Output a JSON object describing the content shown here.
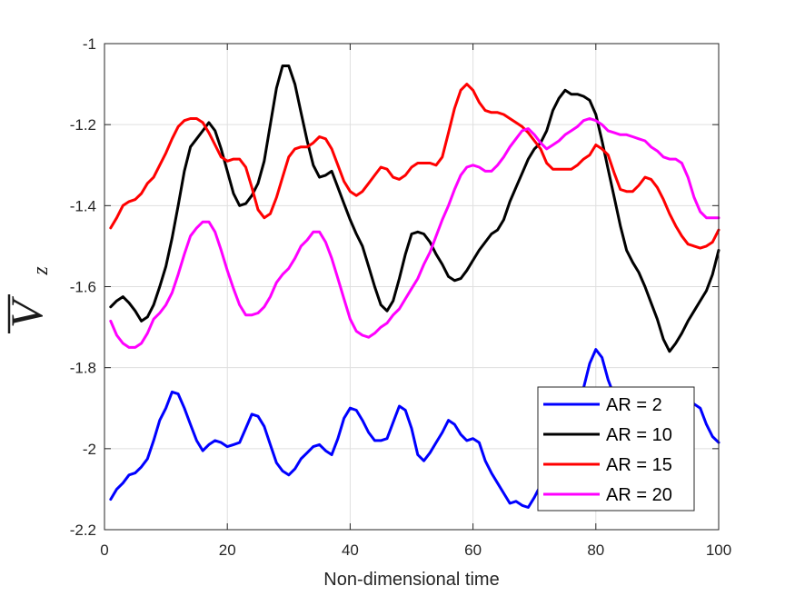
{
  "chart_data": {
    "type": "line",
    "xlabel": "Non-dimensional time",
    "ylabel": {
      "symbol": "V",
      "subscript": "z",
      "overline": true
    },
    "xlim": [
      0,
      100
    ],
    "ylim": [
      -2.2,
      -1.0
    ],
    "xticks": [
      0,
      20,
      40,
      60,
      80,
      100
    ],
    "yticks": [
      -2.2,
      -2.0,
      -1.8,
      -1.6,
      -1.4,
      -1.2,
      -1.0
    ],
    "xtick_labels": [
      "0",
      "20",
      "40",
      "60",
      "80",
      "100"
    ],
    "ytick_labels": [
      "-2.2",
      "-2",
      "-1.8",
      "-1.6",
      "-1.4",
      "-1.2",
      "-1"
    ],
    "grid": true,
    "legend_position": "bottom-right",
    "series": [
      {
        "name": "AR = 2",
        "color": "#0000ff",
        "x": [
          1,
          2,
          3,
          4,
          5,
          6,
          7,
          8,
          9,
          10,
          11,
          12,
          13,
          14,
          15,
          16,
          17,
          18,
          19,
          20,
          21,
          22,
          23,
          24,
          25,
          26,
          27,
          28,
          29,
          30,
          31,
          32,
          33,
          34,
          35,
          36,
          37,
          38,
          39,
          40,
          41,
          42,
          43,
          44,
          45,
          46,
          47,
          48,
          49,
          50,
          51,
          52,
          53,
          54,
          55,
          56,
          57,
          58,
          59,
          60,
          61,
          62,
          63,
          64,
          65,
          66,
          67,
          68,
          69,
          70,
          71,
          72,
          73,
          74,
          75,
          76,
          77,
          78,
          79,
          80,
          81,
          82,
          83,
          84,
          85,
          86,
          87,
          88,
          89,
          90,
          91,
          92,
          93,
          94,
          95,
          96,
          97,
          98,
          99,
          100
        ],
        "values": [
          -2.125,
          -2.1,
          -2.085,
          -2.065,
          -2.06,
          -2.045,
          -2.025,
          -1.98,
          -1.93,
          -1.9,
          -1.86,
          -1.865,
          -1.9,
          -1.94,
          -1.98,
          -2.005,
          -1.99,
          -1.98,
          -1.985,
          -1.995,
          -1.99,
          -1.985,
          -1.95,
          -1.915,
          -1.92,
          -1.945,
          -1.99,
          -2.035,
          -2.055,
          -2.065,
          -2.05,
          -2.025,
          -2.01,
          -1.995,
          -1.99,
          -2.005,
          -2.015,
          -1.975,
          -1.925,
          -1.9,
          -1.905,
          -1.93,
          -1.96,
          -1.98,
          -1.98,
          -1.975,
          -1.935,
          -1.895,
          -1.905,
          -1.95,
          -2.015,
          -2.03,
          -2.01,
          -1.985,
          -1.96,
          -1.93,
          -1.94,
          -1.965,
          -1.98,
          -1.975,
          -1.985,
          -2.03,
          -2.06,
          -2.085,
          -2.11,
          -2.135,
          -2.13,
          -2.14,
          -2.145,
          -2.12,
          -2.09,
          -2.06,
          -2.04,
          -2.02,
          -1.98,
          -1.94,
          -1.9,
          -1.85,
          -1.79,
          -1.755,
          -1.775,
          -1.83,
          -1.87,
          -1.89,
          -1.9,
          -1.905,
          -1.91,
          -1.91,
          -1.905,
          -1.9,
          -1.895,
          -1.88,
          -1.87,
          -1.865,
          -1.87,
          -1.89,
          -1.9,
          -1.94,
          -1.97,
          -1.985
        ]
      },
      {
        "name": "AR = 10",
        "color": "#000000",
        "x": [
          1,
          2,
          3,
          4,
          5,
          6,
          7,
          8,
          9,
          10,
          11,
          12,
          13,
          14,
          15,
          16,
          17,
          18,
          19,
          20,
          21,
          22,
          23,
          24,
          25,
          26,
          27,
          28,
          29,
          30,
          31,
          32,
          33,
          34,
          35,
          36,
          37,
          38,
          39,
          40,
          41,
          42,
          43,
          44,
          45,
          46,
          47,
          48,
          49,
          50,
          51,
          52,
          53,
          54,
          55,
          56,
          57,
          58,
          59,
          60,
          61,
          62,
          63,
          64,
          65,
          66,
          67,
          68,
          69,
          70,
          71,
          72,
          73,
          74,
          75,
          76,
          77,
          78,
          79,
          80,
          81,
          82,
          83,
          84,
          85,
          86,
          87,
          88,
          89,
          90,
          91,
          92,
          93,
          94,
          95,
          96,
          97,
          98,
          99,
          100
        ],
        "values": [
          -1.65,
          -1.635,
          -1.625,
          -1.64,
          -1.66,
          -1.685,
          -1.675,
          -1.645,
          -1.6,
          -1.55,
          -1.48,
          -1.4,
          -1.315,
          -1.255,
          -1.235,
          -1.215,
          -1.195,
          -1.215,
          -1.26,
          -1.315,
          -1.37,
          -1.4,
          -1.395,
          -1.375,
          -1.345,
          -1.29,
          -1.2,
          -1.11,
          -1.055,
          -1.055,
          -1.1,
          -1.17,
          -1.24,
          -1.3,
          -1.33,
          -1.325,
          -1.315,
          -1.355,
          -1.395,
          -1.435,
          -1.47,
          -1.5,
          -1.55,
          -1.6,
          -1.645,
          -1.66,
          -1.635,
          -1.58,
          -1.52,
          -1.47,
          -1.465,
          -1.47,
          -1.49,
          -1.52,
          -1.545,
          -1.575,
          -1.585,
          -1.58,
          -1.56,
          -1.535,
          -1.51,
          -1.49,
          -1.47,
          -1.46,
          -1.435,
          -1.39,
          -1.355,
          -1.32,
          -1.285,
          -1.26,
          -1.245,
          -1.215,
          -1.165,
          -1.135,
          -1.115,
          -1.125,
          -1.125,
          -1.13,
          -1.14,
          -1.175,
          -1.24,
          -1.31,
          -1.38,
          -1.45,
          -1.51,
          -1.54,
          -1.565,
          -1.6,
          -1.64,
          -1.68,
          -1.73,
          -1.76,
          -1.74,
          -1.715,
          -1.685,
          -1.66,
          -1.635,
          -1.61,
          -1.57,
          -1.51
        ]
      },
      {
        "name": "AR = 15",
        "color": "#ff0000",
        "x": [
          1,
          2,
          3,
          4,
          5,
          6,
          7,
          8,
          9,
          10,
          11,
          12,
          13,
          14,
          15,
          16,
          17,
          18,
          19,
          20,
          21,
          22,
          23,
          24,
          25,
          26,
          27,
          28,
          29,
          30,
          31,
          32,
          33,
          34,
          35,
          36,
          37,
          38,
          39,
          40,
          41,
          42,
          43,
          44,
          45,
          46,
          47,
          48,
          49,
          50,
          51,
          52,
          53,
          54,
          55,
          56,
          57,
          58,
          59,
          60,
          61,
          62,
          63,
          64,
          65,
          66,
          67,
          68,
          69,
          70,
          71,
          72,
          73,
          74,
          75,
          76,
          77,
          78,
          79,
          80,
          81,
          82,
          83,
          84,
          85,
          86,
          87,
          88,
          89,
          90,
          91,
          92,
          93,
          94,
          95,
          96,
          97,
          98,
          99,
          100
        ],
        "values": [
          -1.455,
          -1.43,
          -1.4,
          -1.39,
          -1.385,
          -1.37,
          -1.345,
          -1.33,
          -1.3,
          -1.27,
          -1.235,
          -1.205,
          -1.19,
          -1.185,
          -1.185,
          -1.195,
          -1.22,
          -1.25,
          -1.28,
          -1.29,
          -1.285,
          -1.285,
          -1.305,
          -1.355,
          -1.41,
          -1.43,
          -1.42,
          -1.38,
          -1.33,
          -1.28,
          -1.26,
          -1.255,
          -1.255,
          -1.245,
          -1.23,
          -1.235,
          -1.26,
          -1.3,
          -1.34,
          -1.365,
          -1.375,
          -1.365,
          -1.345,
          -1.325,
          -1.305,
          -1.31,
          -1.33,
          -1.335,
          -1.325,
          -1.305,
          -1.295,
          -1.295,
          -1.295,
          -1.3,
          -1.28,
          -1.22,
          -1.16,
          -1.115,
          -1.1,
          -1.115,
          -1.145,
          -1.165,
          -1.17,
          -1.17,
          -1.175,
          -1.185,
          -1.195,
          -1.205,
          -1.22,
          -1.24,
          -1.26,
          -1.295,
          -1.31,
          -1.31,
          -1.31,
          -1.31,
          -1.3,
          -1.285,
          -1.275,
          -1.25,
          -1.26,
          -1.275,
          -1.32,
          -1.36,
          -1.365,
          -1.365,
          -1.35,
          -1.33,
          -1.335,
          -1.355,
          -1.385,
          -1.42,
          -1.45,
          -1.475,
          -1.495,
          -1.5,
          -1.505,
          -1.5,
          -1.49,
          -1.46
        ]
      },
      {
        "name": "AR = 20",
        "color": "#ff00ff",
        "x": [
          1,
          2,
          3,
          4,
          5,
          6,
          7,
          8,
          9,
          10,
          11,
          12,
          13,
          14,
          15,
          16,
          17,
          18,
          19,
          20,
          21,
          22,
          23,
          24,
          25,
          26,
          27,
          28,
          29,
          30,
          31,
          32,
          33,
          34,
          35,
          36,
          37,
          38,
          39,
          40,
          41,
          42,
          43,
          44,
          45,
          46,
          47,
          48,
          49,
          50,
          51,
          52,
          53,
          54,
          55,
          56,
          57,
          58,
          59,
          60,
          61,
          62,
          63,
          64,
          65,
          66,
          67,
          68,
          69,
          70,
          71,
          72,
          73,
          74,
          75,
          76,
          77,
          78,
          79,
          80,
          81,
          82,
          83,
          84,
          85,
          86,
          87,
          88,
          89,
          90,
          91,
          92,
          93,
          94,
          95,
          96,
          97,
          98,
          99,
          100
        ],
        "values": [
          -1.685,
          -1.72,
          -1.74,
          -1.75,
          -1.75,
          -1.74,
          -1.715,
          -1.68,
          -1.665,
          -1.645,
          -1.615,
          -1.57,
          -1.52,
          -1.475,
          -1.455,
          -1.44,
          -1.44,
          -1.465,
          -1.51,
          -1.56,
          -1.605,
          -1.645,
          -1.67,
          -1.67,
          -1.665,
          -1.65,
          -1.625,
          -1.59,
          -1.57,
          -1.555,
          -1.53,
          -1.5,
          -1.485,
          -1.465,
          -1.465,
          -1.49,
          -1.53,
          -1.58,
          -1.63,
          -1.68,
          -1.71,
          -1.72,
          -1.725,
          -1.715,
          -1.7,
          -1.69,
          -1.67,
          -1.655,
          -1.63,
          -1.605,
          -1.58,
          -1.545,
          -1.515,
          -1.475,
          -1.435,
          -1.4,
          -1.36,
          -1.325,
          -1.305,
          -1.3,
          -1.305,
          -1.315,
          -1.315,
          -1.3,
          -1.28,
          -1.255,
          -1.235,
          -1.215,
          -1.21,
          -1.225,
          -1.245,
          -1.26,
          -1.25,
          -1.24,
          -1.225,
          -1.215,
          -1.205,
          -1.19,
          -1.185,
          -1.19,
          -1.2,
          -1.215,
          -1.22,
          -1.225,
          -1.225,
          -1.23,
          -1.235,
          -1.24,
          -1.255,
          -1.265,
          -1.28,
          -1.285,
          -1.285,
          -1.295,
          -1.33,
          -1.38,
          -1.415,
          -1.43,
          -1.43,
          -1.43
        ]
      }
    ]
  }
}
